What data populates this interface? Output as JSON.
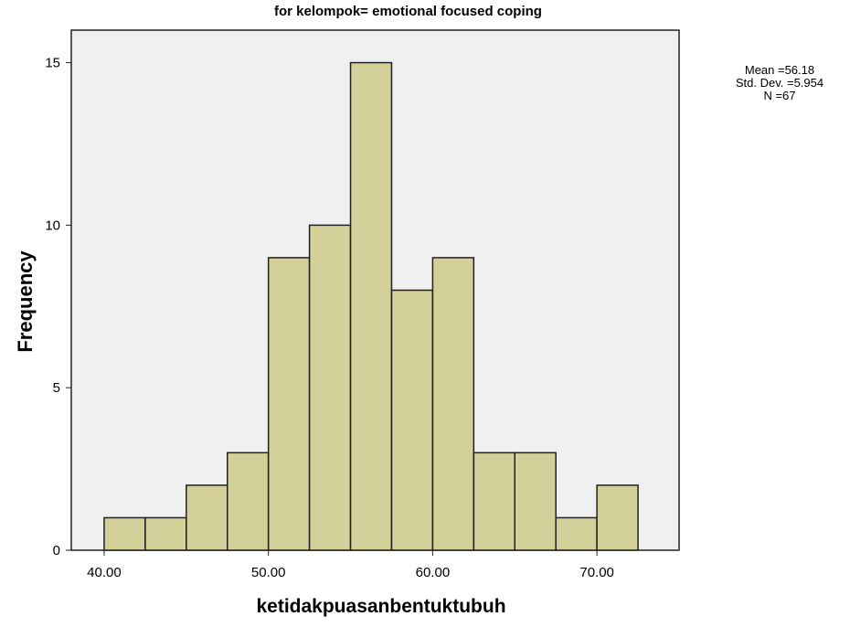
{
  "chart_data": {
    "type": "bar",
    "title": "for kelompok= emotional focused coping",
    "xlabel": "ketidakpuasanbentuktubuh",
    "ylabel": "Frequency",
    "bin_edges": [
      40.0,
      42.5,
      45.0,
      47.5,
      50.0,
      52.5,
      55.0,
      57.5,
      60.0,
      62.5,
      65.0,
      67.5,
      70.0,
      72.5
    ],
    "values": [
      1,
      1,
      2,
      3,
      9,
      10,
      15,
      8,
      9,
      3,
      3,
      1,
      2
    ],
    "xlim": [
      38.0,
      75.0
    ],
    "ylim": [
      0,
      16
    ],
    "x_ticks": [
      40,
      50,
      60,
      70
    ],
    "x_tick_labels": [
      "40.00",
      "50.00",
      "60.00",
      "70.00"
    ],
    "y_ticks": [
      0,
      5,
      10,
      15
    ],
    "y_tick_labels": [
      "0",
      "5",
      "10",
      "15"
    ],
    "grid": false,
    "legend": "none",
    "stats": {
      "mean": "Mean =56.18",
      "std": "Std. Dev. =5.954",
      "n": "N =67"
    },
    "colors": {
      "bar_fill": "#d4d09a",
      "bar_stroke": "#202020",
      "plot_background": "#f0f0f0"
    }
  }
}
